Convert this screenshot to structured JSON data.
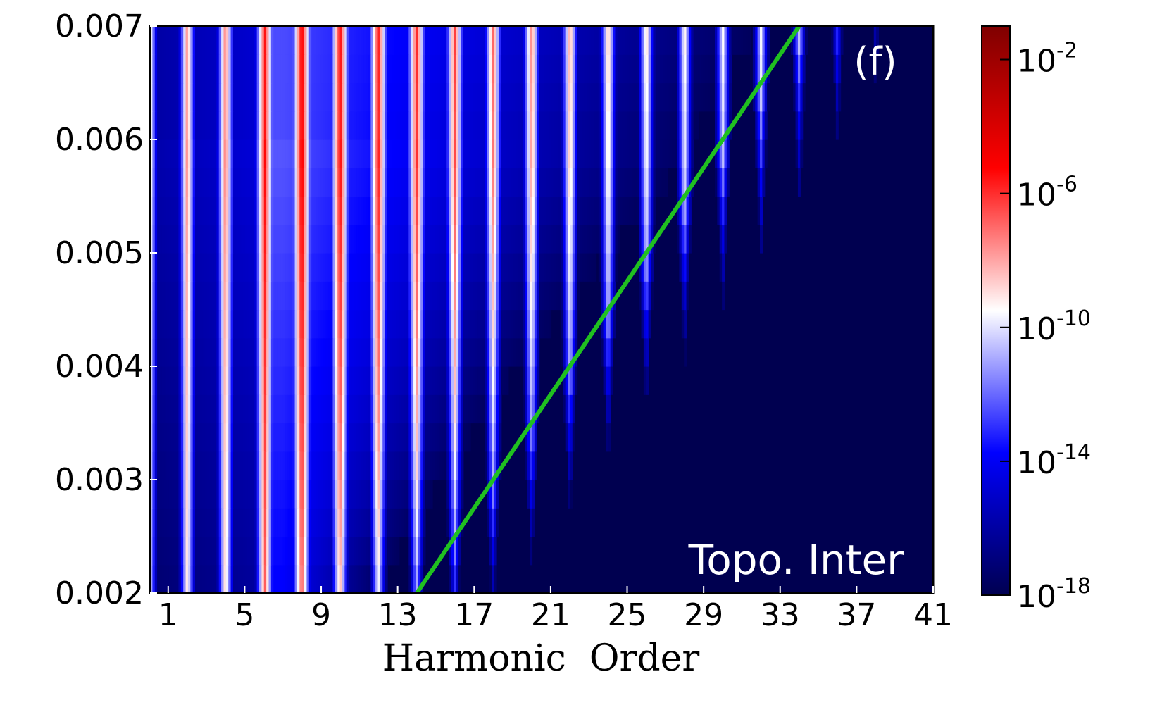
{
  "chart_data": {
    "type": "heatmap",
    "title": "",
    "xlabel": "Harmonic  Order",
    "ylabel": "",
    "x_ticks": [
      "1",
      "5",
      "9",
      "13",
      "17",
      "21",
      "25",
      "29",
      "33",
      "37",
      "41"
    ],
    "x_tick_values": [
      1,
      5,
      9,
      13,
      17,
      21,
      25,
      29,
      33,
      37,
      41
    ],
    "y_ticks": [
      "0.007",
      "0.006",
      "0.005",
      "0.004",
      "0.003",
      "0.002"
    ],
    "y_tick_values": [
      0.007,
      0.006,
      0.005,
      0.004,
      0.003,
      0.002
    ],
    "xlim": [
      0.05,
      41
    ],
    "ylim": [
      0.002,
      0.007
    ],
    "colorbar": {
      "scale": "log",
      "range": [
        1e-18,
        0.1
      ],
      "tick_bases": [
        "10",
        "10",
        "10",
        "10",
        "10"
      ],
      "tick_exponents": [
        "-2",
        "-6",
        "-10",
        "-14",
        "-18"
      ],
      "tick_values": [
        0.01,
        1e-06,
        1e-10,
        1e-14,
        1e-18
      ],
      "colormap": [
        "#000050",
        "#0000ff",
        "#ffffff",
        "#ff0000",
        "#7f0000"
      ]
    },
    "cutoff_line": {
      "color": "#20c020",
      "points": [
        [
          14,
          0.002
        ],
        [
          34,
          0.007
        ]
      ]
    },
    "panel_label": "(f)",
    "annotation": "Topo. Inter",
    "grid": false,
    "legend": "none"
  }
}
